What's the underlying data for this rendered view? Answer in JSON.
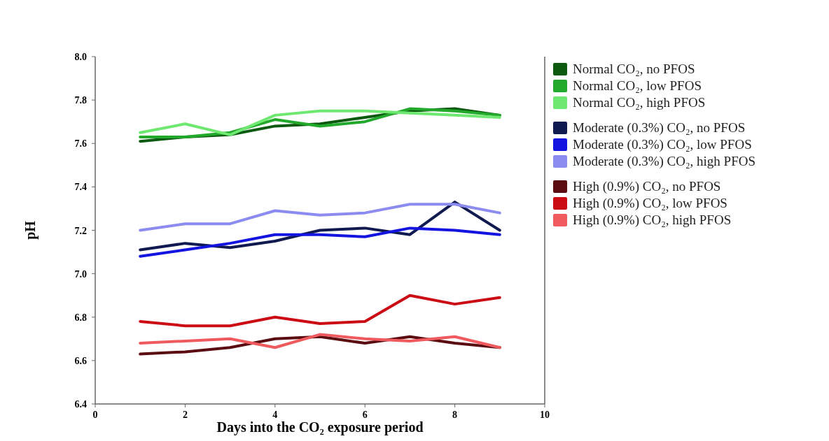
{
  "chart_data": {
    "type": "line",
    "xlabel": "Days into the CO₂ exposure period",
    "ylabel": "pH",
    "xlim": [
      0,
      10
    ],
    "xticks": [
      0,
      2,
      4,
      6,
      8,
      10
    ],
    "ylim": [
      6.4,
      8.0
    ],
    "yticks": [
      {
        "value": 6.4,
        "label": "6.4"
      },
      {
        "value": 6.6,
        "label": "6.6"
      },
      {
        "value": 6.8,
        "label": "6.8"
      },
      {
        "value": 7.0,
        "label": "7.0"
      },
      {
        "value": 7.2,
        "label": "7.2"
      },
      {
        "value": 7.4,
        "label": "7.4"
      },
      {
        "value": 7.6,
        "label": "7.6"
      },
      {
        "value": 7.8,
        "label": "7.8"
      },
      {
        "value": 8.0,
        "label": "8.0"
      }
    ],
    "x": [
      1,
      2,
      3,
      4,
      5,
      6,
      7,
      8,
      9
    ],
    "legend": "right",
    "grid": false,
    "marker": "none",
    "line_style": "solid",
    "series": [
      {
        "name": "Normal CO₂, no PFOS",
        "color": "#0b5a10",
        "values": [
          7.61,
          7.63,
          7.64,
          7.68,
          7.69,
          7.72,
          7.75,
          7.76,
          7.73
        ]
      },
      {
        "name": "Normal CO₂, low PFOS",
        "color": "#22a82a",
        "values": [
          7.63,
          7.63,
          7.65,
          7.71,
          7.68,
          7.7,
          7.76,
          7.75,
          7.73
        ]
      },
      {
        "name": "Normal CO₂, high PFOS",
        "color": "#6ee870",
        "values": [
          7.65,
          7.69,
          7.64,
          7.73,
          7.75,
          7.75,
          7.74,
          7.73,
          7.72
        ]
      },
      {
        "name": "Moderate (0.3%) CO₂, no PFOS",
        "color": "#101a50",
        "values": [
          7.11,
          7.14,
          7.12,
          7.15,
          7.2,
          7.21,
          7.18,
          7.33,
          7.2
        ]
      },
      {
        "name": "Moderate (0.3%) CO₂, low PFOS",
        "color": "#1414e0",
        "values": [
          7.08,
          7.11,
          7.14,
          7.18,
          7.18,
          7.17,
          7.21,
          7.2,
          7.18
        ]
      },
      {
        "name": "Moderate (0.3%) CO₂, high PFOS",
        "color": "#8c8cf0",
        "values": [
          7.2,
          7.23,
          7.23,
          7.29,
          7.27,
          7.28,
          7.32,
          7.32,
          7.28
        ]
      },
      {
        "name": "High (0.9%) CO₂, no PFOS",
        "color": "#5a0c10",
        "values": [
          6.63,
          6.64,
          6.66,
          6.7,
          6.71,
          6.68,
          6.71,
          6.68,
          6.66
        ]
      },
      {
        "name": "High (0.9%) CO₂, low PFOS",
        "color": "#cc0c14",
        "values": [
          6.78,
          6.76,
          6.76,
          6.8,
          6.77,
          6.78,
          6.9,
          6.86,
          6.89
        ]
      },
      {
        "name": "High (0.9%) CO₂, high PFOS",
        "color": "#ee5a5e",
        "values": [
          6.68,
          6.69,
          6.7,
          6.66,
          6.72,
          6.7,
          6.69,
          6.71,
          6.66
        ]
      }
    ]
  }
}
